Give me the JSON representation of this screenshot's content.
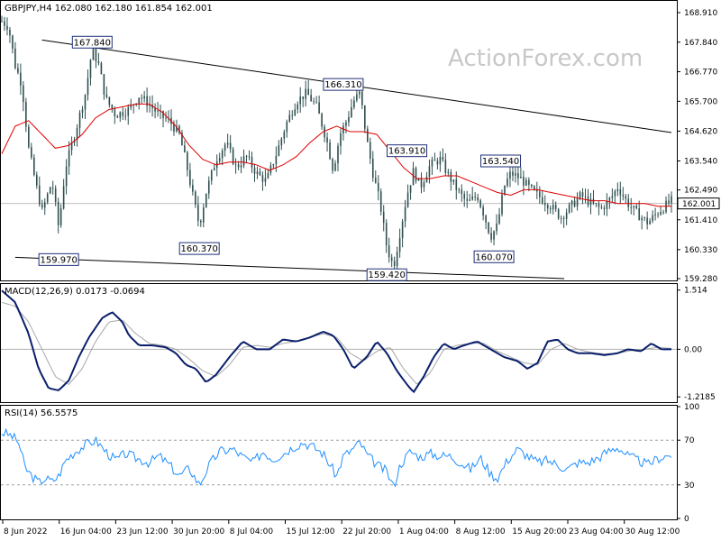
{
  "chart_data": [
    {
      "type": "candlestick",
      "header": "GBPJPY,H4  162.080 162.180 161.854 162.001",
      "watermark": "ActionForex.com",
      "ylim": [
        159.28,
        168.91
      ],
      "y_ticks": [
        "168.910",
        "167.840",
        "166.770",
        "165.700",
        "164.620",
        "163.540",
        "162.490",
        "161.410",
        "160.330",
        "159.280"
      ],
      "last_price_label": "162.001",
      "last_price": 162.001,
      "colors": {
        "candle": "#2f4f4f",
        "ma": "#e00000",
        "trend": "#000000",
        "last_line": "#c0c0c0",
        "label_border": "#1f2f7a"
      },
      "swing_labels": [
        {
          "text": "167.840",
          "x": 0.135,
          "y": 167.84
        },
        {
          "text": "159.970",
          "x": 0.085,
          "y": 159.97
        },
        {
          "text": "160.370",
          "x": 0.295,
          "y": 160.37
        },
        {
          "text": "166.310",
          "x": 0.51,
          "y": 166.31
        },
        {
          "text": "159.420",
          "x": 0.575,
          "y": 159.42
        },
        {
          "text": "163.910",
          "x": 0.605,
          "y": 163.91
        },
        {
          "text": "160.070",
          "x": 0.735,
          "y": 160.07
        },
        {
          "text": "163.540",
          "x": 0.745,
          "y": 163.54
        }
      ],
      "trendlines": [
        {
          "x1": 0.06,
          "y1": 167.92,
          "x2": 1.0,
          "y2": 164.57
        },
        {
          "x1": 0.02,
          "y1": 160.05,
          "x2": 0.84,
          "y2": 159.28
        }
      ],
      "price_path": [
        [
          0.0,
          168.6
        ],
        [
          0.01,
          168.4
        ],
        [
          0.02,
          167.0
        ],
        [
          0.03,
          166.3
        ],
        [
          0.04,
          164.0
        ],
        [
          0.05,
          162.8
        ],
        [
          0.06,
          161.7
        ],
        [
          0.075,
          162.8
        ],
        [
          0.085,
          161.1
        ],
        [
          0.095,
          163.3
        ],
        [
          0.11,
          164.6
        ],
        [
          0.125,
          166.0
        ],
        [
          0.135,
          167.6
        ],
        [
          0.145,
          167.0
        ],
        [
          0.155,
          165.8
        ],
        [
          0.17,
          165.2
        ],
        [
          0.19,
          165.4
        ],
        [
          0.205,
          165.9
        ],
        [
          0.22,
          165.6
        ],
        [
          0.235,
          165.2
        ],
        [
          0.25,
          165.0
        ],
        [
          0.265,
          164.5
        ],
        [
          0.275,
          163.5
        ],
        [
          0.285,
          162.3
        ],
        [
          0.295,
          161.2
        ],
        [
          0.305,
          162.4
        ],
        [
          0.32,
          163.6
        ],
        [
          0.335,
          164.2
        ],
        [
          0.35,
          163.3
        ],
        [
          0.365,
          163.7
        ],
        [
          0.38,
          163.1
        ],
        [
          0.395,
          162.8
        ],
        [
          0.41,
          163.8
        ],
        [
          0.425,
          164.9
        ],
        [
          0.44,
          165.7
        ],
        [
          0.455,
          166.0
        ],
        [
          0.47,
          165.5
        ],
        [
          0.485,
          164.3
        ],
        [
          0.495,
          163.2
        ],
        [
          0.505,
          164.5
        ],
        [
          0.515,
          165.0
        ],
        [
          0.525,
          165.7
        ],
        [
          0.535,
          166.0
        ],
        [
          0.545,
          164.3
        ],
        [
          0.555,
          163.0
        ],
        [
          0.565,
          162.0
        ],
        [
          0.575,
          160.4
        ],
        [
          0.585,
          159.7
        ],
        [
          0.595,
          161.0
        ],
        [
          0.605,
          162.3
        ],
        [
          0.615,
          163.2
        ],
        [
          0.625,
          162.6
        ],
        [
          0.64,
          163.4
        ],
        [
          0.655,
          163.6
        ],
        [
          0.665,
          163.1
        ],
        [
          0.68,
          162.5
        ],
        [
          0.695,
          162.0
        ],
        [
          0.71,
          162.3
        ],
        [
          0.72,
          161.6
        ],
        [
          0.73,
          160.8
        ],
        [
          0.74,
          161.2
        ],
        [
          0.75,
          162.6
        ],
        [
          0.76,
          163.1
        ],
        [
          0.775,
          162.9
        ],
        [
          0.79,
          162.5
        ],
        [
          0.805,
          162.2
        ],
        [
          0.82,
          161.9
        ],
        [
          0.835,
          161.5
        ],
        [
          0.85,
          161.9
        ],
        [
          0.865,
          162.3
        ],
        [
          0.88,
          162.0
        ],
        [
          0.895,
          161.8
        ],
        [
          0.91,
          162.2
        ],
        [
          0.92,
          162.6
        ],
        [
          0.935,
          162.0
        ],
        [
          0.95,
          161.6
        ],
        [
          0.965,
          161.3
        ],
        [
          0.98,
          161.7
        ],
        [
          1.0,
          162.1
        ]
      ],
      "ma_path": [
        [
          0.0,
          163.8
        ],
        [
          0.02,
          164.8
        ],
        [
          0.04,
          165.0
        ],
        [
          0.06,
          164.5
        ],
        [
          0.08,
          164.0
        ],
        [
          0.1,
          164.1
        ],
        [
          0.12,
          164.5
        ],
        [
          0.14,
          165.1
        ],
        [
          0.16,
          165.4
        ],
        [
          0.18,
          165.5
        ],
        [
          0.2,
          165.6
        ],
        [
          0.22,
          165.6
        ],
        [
          0.24,
          165.3
        ],
        [
          0.26,
          164.8
        ],
        [
          0.28,
          164.1
        ],
        [
          0.3,
          163.6
        ],
        [
          0.32,
          163.4
        ],
        [
          0.34,
          163.5
        ],
        [
          0.36,
          163.5
        ],
        [
          0.38,
          163.4
        ],
        [
          0.4,
          163.2
        ],
        [
          0.42,
          163.4
        ],
        [
          0.44,
          163.7
        ],
        [
          0.46,
          164.2
        ],
        [
          0.48,
          164.6
        ],
        [
          0.5,
          164.8
        ],
        [
          0.52,
          164.6
        ],
        [
          0.54,
          164.6
        ],
        [
          0.56,
          164.5
        ],
        [
          0.58,
          163.9
        ],
        [
          0.6,
          163.3
        ],
        [
          0.62,
          162.9
        ],
        [
          0.64,
          162.9
        ],
        [
          0.66,
          163.0
        ],
        [
          0.68,
          163.0
        ],
        [
          0.7,
          162.8
        ],
        [
          0.72,
          162.6
        ],
        [
          0.74,
          162.4
        ],
        [
          0.76,
          162.3
        ],
        [
          0.78,
          162.5
        ],
        [
          0.8,
          162.5
        ],
        [
          0.82,
          162.4
        ],
        [
          0.84,
          162.3
        ],
        [
          0.86,
          162.2
        ],
        [
          0.88,
          162.1
        ],
        [
          0.9,
          162.1
        ],
        [
          0.92,
          162.0
        ],
        [
          0.94,
          162.0
        ],
        [
          0.96,
          162.0
        ],
        [
          0.98,
          161.9
        ],
        [
          1.0,
          161.9
        ]
      ]
    },
    {
      "type": "line",
      "header": "MACD(12,26,9) 0.0173 -0.0694",
      "ylim": [
        -1.33,
        1.6
      ],
      "y_ticks": [
        "1.514",
        "0.00",
        "-1.2185"
      ],
      "last_value_label": "0.00",
      "zero_line": 0,
      "colors": {
        "macd": "#0a1f6b",
        "signal": "#a8a8a8",
        "zero": "#b0b0b0"
      },
      "macd_path": [
        [
          0.0,
          1.5
        ],
        [
          0.02,
          1.2
        ],
        [
          0.04,
          0.4
        ],
        [
          0.055,
          -0.5
        ],
        [
          0.07,
          -1.0
        ],
        [
          0.085,
          -1.05
        ],
        [
          0.1,
          -0.8
        ],
        [
          0.115,
          -0.2
        ],
        [
          0.13,
          0.3
        ],
        [
          0.15,
          0.8
        ],
        [
          0.165,
          0.95
        ],
        [
          0.18,
          0.7
        ],
        [
          0.19,
          0.35
        ],
        [
          0.205,
          0.1
        ],
        [
          0.225,
          0.1
        ],
        [
          0.245,
          0.05
        ],
        [
          0.26,
          -0.1
        ],
        [
          0.275,
          -0.4
        ],
        [
          0.29,
          -0.5
        ],
        [
          0.305,
          -0.85
        ],
        [
          0.32,
          -0.65
        ],
        [
          0.34,
          -0.2
        ],
        [
          0.36,
          0.2
        ],
        [
          0.38,
          0.0
        ],
        [
          0.4,
          0.0
        ],
        [
          0.42,
          0.25
        ],
        [
          0.44,
          0.2
        ],
        [
          0.46,
          0.3
        ],
        [
          0.48,
          0.45
        ],
        [
          0.495,
          0.35
        ],
        [
          0.51,
          0.0
        ],
        [
          0.525,
          -0.5
        ],
        [
          0.545,
          -0.2
        ],
        [
          0.56,
          0.2
        ],
        [
          0.575,
          -0.1
        ],
        [
          0.59,
          -0.55
        ],
        [
          0.605,
          -0.9
        ],
        [
          0.615,
          -1.1
        ],
        [
          0.63,
          -0.7
        ],
        [
          0.645,
          -0.2
        ],
        [
          0.66,
          0.15
        ],
        [
          0.675,
          0.0
        ],
        [
          0.69,
          0.1
        ],
        [
          0.71,
          0.2
        ],
        [
          0.73,
          0.0
        ],
        [
          0.75,
          -0.2
        ],
        [
          0.77,
          -0.3
        ],
        [
          0.785,
          -0.5
        ],
        [
          0.8,
          -0.35
        ],
        [
          0.815,
          0.2
        ],
        [
          0.83,
          0.25
        ],
        [
          0.845,
          0.0
        ],
        [
          0.86,
          -0.1
        ],
        [
          0.88,
          -0.1
        ],
        [
          0.9,
          -0.15
        ],
        [
          0.92,
          -0.1
        ],
        [
          0.935,
          0.0
        ],
        [
          0.955,
          -0.05
        ],
        [
          0.97,
          0.15
        ],
        [
          0.985,
          0.0
        ],
        [
          1.0,
          0.0
        ]
      ],
      "signal_path": [
        [
          0.0,
          1.2
        ],
        [
          0.02,
          1.1
        ],
        [
          0.04,
          0.7
        ],
        [
          0.06,
          0.0
        ],
        [
          0.08,
          -0.7
        ],
        [
          0.1,
          -0.9
        ],
        [
          0.12,
          -0.5
        ],
        [
          0.14,
          0.2
        ],
        [
          0.16,
          0.7
        ],
        [
          0.18,
          0.75
        ],
        [
          0.2,
          0.4
        ],
        [
          0.22,
          0.15
        ],
        [
          0.24,
          0.1
        ],
        [
          0.26,
          0.0
        ],
        [
          0.28,
          -0.25
        ],
        [
          0.3,
          -0.55
        ],
        [
          0.32,
          -0.7
        ],
        [
          0.34,
          -0.4
        ],
        [
          0.36,
          0.05
        ],
        [
          0.38,
          0.1
        ],
        [
          0.4,
          0.05
        ],
        [
          0.42,
          0.15
        ],
        [
          0.44,
          0.2
        ],
        [
          0.46,
          0.3
        ],
        [
          0.48,
          0.4
        ],
        [
          0.5,
          0.3
        ],
        [
          0.52,
          -0.1
        ],
        [
          0.54,
          -0.3
        ],
        [
          0.56,
          -0.05
        ],
        [
          0.58,
          0.05
        ],
        [
          0.6,
          -0.5
        ],
        [
          0.62,
          -0.9
        ],
        [
          0.64,
          -0.6
        ],
        [
          0.66,
          0.0
        ],
        [
          0.68,
          0.1
        ],
        [
          0.7,
          0.15
        ],
        [
          0.72,
          0.15
        ],
        [
          0.74,
          -0.05
        ],
        [
          0.76,
          -0.2
        ],
        [
          0.78,
          -0.35
        ],
        [
          0.8,
          -0.4
        ],
        [
          0.82,
          0.0
        ],
        [
          0.84,
          0.15
        ],
        [
          0.86,
          0.0
        ],
        [
          0.88,
          -0.08
        ],
        [
          0.9,
          -0.12
        ],
        [
          0.92,
          -0.1
        ],
        [
          0.94,
          -0.03
        ],
        [
          0.96,
          0.0
        ],
        [
          0.98,
          0.05
        ],
        [
          1.0,
          0.02
        ]
      ]
    },
    {
      "type": "line",
      "header": "RSI(14) 56.5575",
      "ylim": [
        0,
        100
      ],
      "y_ticks": [
        "100",
        "70",
        "30",
        "0"
      ],
      "levels": [
        70,
        30
      ],
      "colors": {
        "rsi": "#1e8fff",
        "level": "#a0a0a0"
      },
      "rsi_path": [
        [
          0.0,
          77
        ],
        [
          0.015,
          74
        ],
        [
          0.025,
          68
        ],
        [
          0.035,
          45
        ],
        [
          0.045,
          38
        ],
        [
          0.055,
          32
        ],
        [
          0.065,
          36
        ],
        [
          0.075,
          33
        ],
        [
          0.085,
          38
        ],
        [
          0.095,
          52
        ],
        [
          0.11,
          60
        ],
        [
          0.125,
          66
        ],
        [
          0.14,
          70
        ],
        [
          0.155,
          60
        ],
        [
          0.17,
          52
        ],
        [
          0.185,
          58
        ],
        [
          0.2,
          54
        ],
        [
          0.22,
          50
        ],
        [
          0.235,
          56
        ],
        [
          0.25,
          48
        ],
        [
          0.265,
          38
        ],
        [
          0.28,
          45
        ],
        [
          0.295,
          30
        ],
        [
          0.31,
          48
        ],
        [
          0.325,
          60
        ],
        [
          0.345,
          62
        ],
        [
          0.36,
          55
        ],
        [
          0.375,
          50
        ],
        [
          0.39,
          60
        ],
        [
          0.405,
          53
        ],
        [
          0.42,
          58
        ],
        [
          0.435,
          64
        ],
        [
          0.45,
          68
        ],
        [
          0.465,
          64
        ],
        [
          0.48,
          58
        ],
        [
          0.49,
          48
        ],
        [
          0.5,
          38
        ],
        [
          0.51,
          56
        ],
        [
          0.52,
          60
        ],
        [
          0.535,
          68
        ],
        [
          0.545,
          57
        ],
        [
          0.56,
          48
        ],
        [
          0.575,
          42
        ],
        [
          0.585,
          28
        ],
        [
          0.595,
          48
        ],
        [
          0.61,
          60
        ],
        [
          0.625,
          55
        ],
        [
          0.64,
          58
        ],
        [
          0.655,
          56
        ],
        [
          0.67,
          56
        ],
        [
          0.685,
          50
        ],
        [
          0.7,
          44
        ],
        [
          0.715,
          54
        ],
        [
          0.73,
          40
        ],
        [
          0.74,
          36
        ],
        [
          0.755,
          52
        ],
        [
          0.77,
          62
        ],
        [
          0.785,
          56
        ],
        [
          0.8,
          50
        ],
        [
          0.815,
          52
        ],
        [
          0.83,
          48
        ],
        [
          0.845,
          44
        ],
        [
          0.86,
          50
        ],
        [
          0.875,
          50
        ],
        [
          0.89,
          54
        ],
        [
          0.905,
          60
        ],
        [
          0.92,
          64
        ],
        [
          0.935,
          56
        ],
        [
          0.95,
          52
        ],
        [
          0.965,
          48
        ],
        [
          0.98,
          54
        ],
        [
          1.0,
          57
        ]
      ]
    }
  ],
  "x_axis": {
    "labels": [
      "8 Jun 2022",
      "16 Jun 04:00",
      "23 Jun 12:00",
      "30 Jun 20:00",
      "8 Jul 04:00",
      "15 Jul 12:00",
      "22 Jul 20:00",
      "1 Aug 04:00",
      "8 Aug 12:00",
      "15 Aug 20:00",
      "23 Aug 04:00",
      "30 Aug 12:00"
    ]
  }
}
